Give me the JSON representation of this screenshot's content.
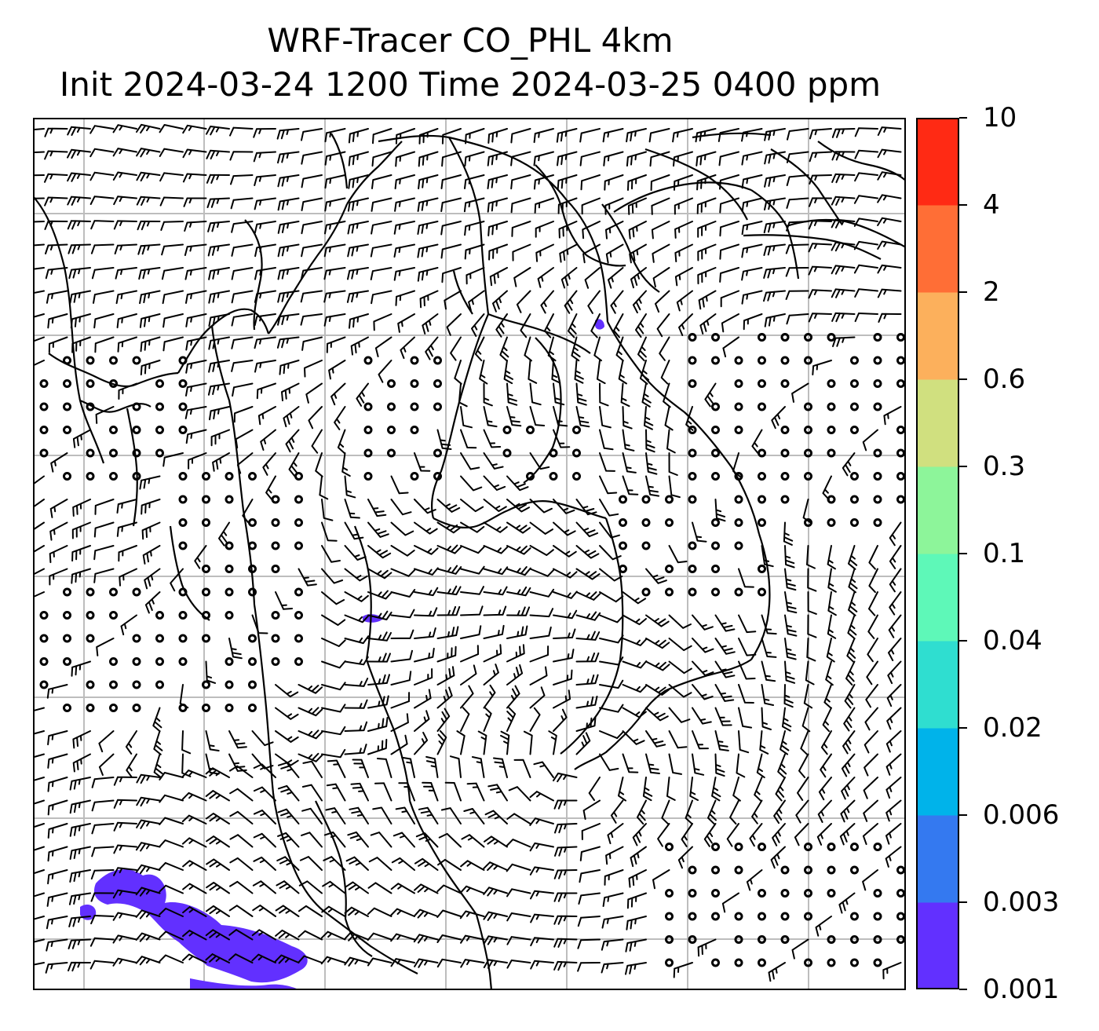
{
  "title": {
    "line1": "WRF-Tracer CO_PHL 4km",
    "line2": "Init 2024-03-24 1200 Time 2024-03-25 0400 ppm"
  },
  "colorbar": {
    "labels": [
      "0.001",
      "0.003",
      "0.006",
      "0.02",
      "0.04",
      "0.1",
      "0.3",
      "0.6",
      "2",
      "4",
      "10"
    ],
    "levels": [
      0.001,
      0.003,
      0.006,
      0.02,
      0.04,
      0.1,
      0.3,
      0.6,
      2,
      4,
      10
    ],
    "colors": [
      "#6230ff",
      "#3479f0",
      "#00b3ea",
      "#2fded0",
      "#5ef8b8",
      "#8df59a",
      "#d0e07f",
      "#fcb05c",
      "#ff6e36",
      "#ff2a14"
    ]
  },
  "map": {
    "gridline_color": "#bdbdbd",
    "plume_color": "#6230ff",
    "plume_level": "0.001"
  }
}
